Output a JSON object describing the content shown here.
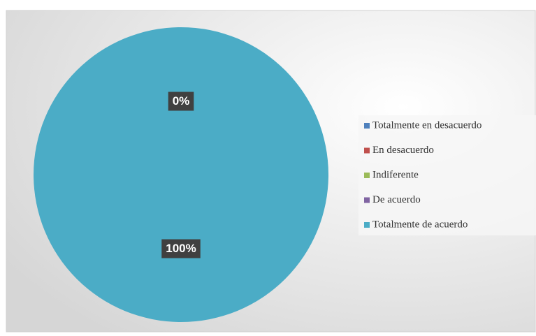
{
  "chart_data": {
    "type": "pie",
    "categories": [
      "Totalmente en desacuerdo",
      "En desacuerdo",
      "Indiferente",
      "De acuerdo",
      "Totalmente de acuerdo"
    ],
    "values": [
      0,
      0,
      0,
      0,
      100
    ],
    "value_labels": [
      "0%",
      null,
      null,
      null,
      "100%"
    ],
    "colors": [
      "#4f81bd",
      "#c0504d",
      "#9bbb59",
      "#8064a2",
      "#4bacc6"
    ],
    "legend": "right"
  }
}
